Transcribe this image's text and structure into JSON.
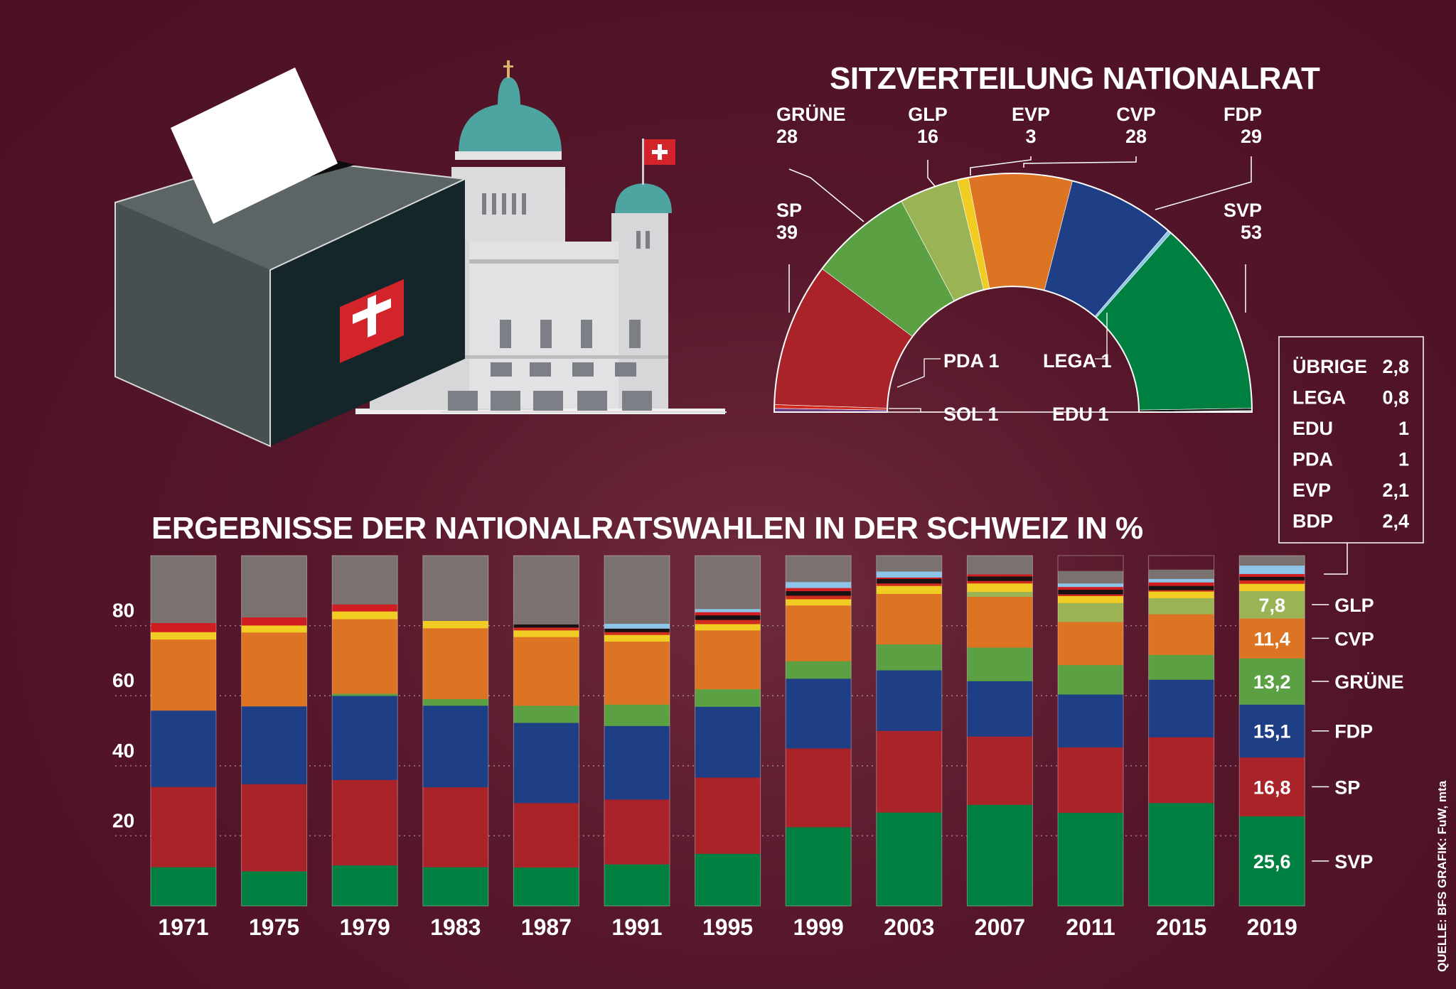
{
  "seat_title": "SITZVERTEILUNG NATIONALRAT",
  "results_title": "ERGEBNISSE DER NATIONALRATSWAHLEN IN DER SCHWEIZ IN %",
  "source": "QUELLE: BFS   GRAFIK: FuW, mta",
  "colors": {
    "SVP": "#008040",
    "SP": "#aa2328",
    "FDP": "#1e3f85",
    "GRUENE": "#5ca044",
    "CVP": "#dc7424",
    "GLP": "#9ab455",
    "EVP": "#f1cc23",
    "BDP": "#8cc5e8",
    "EDU": "#181212",
    "LEGA": "#cf1d22",
    "PDA": "#d12a1e",
    "SOL": "#6b3b86",
    "OTHER": "#7b726f",
    "OTHER_LIGHT": "#cdc8c6"
  },
  "seats": {
    "parties": [
      {
        "key": "SOL",
        "name": "SOL",
        "seats": 1,
        "color": "#6b3b86"
      },
      {
        "key": "PDA",
        "name": "PDA",
        "seats": 1,
        "color": "#d12a1e"
      },
      {
        "key": "SP",
        "name": "SP",
        "seats": 39,
        "color": "#aa2328"
      },
      {
        "key": "GRUENE",
        "name": "GRÜNE",
        "seats": 28,
        "color": "#5ca044"
      },
      {
        "key": "GLP",
        "name": "GLP",
        "seats": 16,
        "color": "#9ab455"
      },
      {
        "key": "EVP",
        "name": "EVP",
        "seats": 3,
        "color": "#f1cc23"
      },
      {
        "key": "CVP",
        "name": "CVP",
        "seats": 28,
        "color": "#dc7424"
      },
      {
        "key": "FDP",
        "name": "FDP",
        "seats": 29,
        "color": "#1e3f85"
      },
      {
        "key": "LEGA",
        "name": "LEGA",
        "seats": 1,
        "color": "#8cc5e8"
      },
      {
        "key": "SVP",
        "name": "SVP",
        "seats": 53,
        "color": "#008040"
      },
      {
        "key": "EDU",
        "name": "EDU",
        "seats": 1,
        "color": "#181212"
      }
    ],
    "labels": [
      {
        "key": "GRUENE",
        "name": "GRÜNE",
        "value": "28"
      },
      {
        "key": "GLP",
        "name": "GLP",
        "value": "16"
      },
      {
        "key": "EVP",
        "name": "EVP",
        "value": "3"
      },
      {
        "key": "CVP",
        "name": "CVP",
        "value": "28"
      },
      {
        "key": "FDP",
        "name": "FDP",
        "value": "29"
      },
      {
        "key": "SP",
        "name": "SP",
        "value": "39"
      },
      {
        "key": "SVP",
        "name": "SVP",
        "value": "53"
      },
      {
        "key": "PDA",
        "text": "PDA 1"
      },
      {
        "key": "LEGA",
        "text": "LEGA 1"
      },
      {
        "key": "SOL",
        "text": "SOL 1"
      },
      {
        "key": "EDU",
        "text": "EDU 1"
      }
    ]
  },
  "other_box": [
    {
      "name": "ÜBRIGE",
      "value": "2,8"
    },
    {
      "name": "LEGA",
      "value": "0,8"
    },
    {
      "name": "EDU",
      "value": "1"
    },
    {
      "name": "PDA",
      "value": "1"
    },
    {
      "name": "EVP",
      "value": "2,1"
    },
    {
      "name": "BDP",
      "value": "2,4"
    }
  ],
  "chart_data": {
    "type": "bar",
    "stacked": true,
    "title": "ERGEBNISSE DER NATIONALRATSWAHLEN IN DER SCHWEIZ IN %",
    "yticks": [
      20,
      40,
      60,
      80
    ],
    "ylim": [
      0,
      100
    ],
    "categories": [
      "1971",
      "1975",
      "1979",
      "1983",
      "1987",
      "1991",
      "1995",
      "1999",
      "2003",
      "2007",
      "2011",
      "2015",
      "2019"
    ],
    "stack_order": [
      "SVP",
      "SP",
      "FDP",
      "GRUENE",
      "CVP",
      "GLP",
      "EVP",
      "PDA",
      "EDU",
      "LEGA",
      "BDP",
      "OTHER"
    ],
    "series": [
      {
        "key": "SVP",
        "values": [
          11.1,
          9.9,
          11.6,
          11.1,
          11.0,
          11.9,
          14.9,
          22.5,
          26.7,
          28.9,
          26.6,
          29.4,
          25.6
        ]
      },
      {
        "key": "SP",
        "values": [
          22.9,
          24.9,
          24.4,
          22.8,
          18.4,
          18.5,
          21.8,
          22.5,
          23.3,
          19.5,
          18.7,
          18.8,
          16.8
        ]
      },
      {
        "key": "FDP",
        "values": [
          21.8,
          22.2,
          24.0,
          23.3,
          22.9,
          21.0,
          20.2,
          19.9,
          17.3,
          15.8,
          15.1,
          16.4,
          15.1
        ]
      },
      {
        "key": "GRUENE",
        "values": [
          0,
          0,
          0.6,
          1.9,
          4.9,
          6.1,
          5.0,
          5.0,
          7.4,
          9.6,
          8.4,
          7.1,
          13.2
        ]
      },
      {
        "key": "CVP",
        "values": [
          20.3,
          21.1,
          21.3,
          20.2,
          19.6,
          18.0,
          16.8,
          15.9,
          14.4,
          14.5,
          12.3,
          11.6,
          11.4
        ]
      },
      {
        "key": "GLP",
        "values": [
          0,
          0,
          0,
          0,
          0,
          0,
          0,
          0,
          0,
          1.4,
          5.4,
          4.6,
          7.8
        ]
      },
      {
        "key": "EVP",
        "values": [
          2.1,
          2.0,
          2.2,
          2.1,
          1.9,
          1.9,
          1.8,
          1.8,
          2.3,
          2.4,
          2.0,
          1.9,
          2.1
        ]
      },
      {
        "key": "PDA",
        "values": [
          0,
          0,
          0,
          0,
          0.8,
          0.8,
          1.2,
          1.0,
          0.7,
          0.7,
          0.5,
          0.4,
          1.0
        ]
      },
      {
        "key": "EDU",
        "values": [
          0,
          0,
          0,
          0,
          0.9,
          1.0,
          1.3,
          1.3,
          1.3,
          1.3,
          1.3,
          1.2,
          1.0
        ]
      },
      {
        "key": "LEGA",
        "values": [
          2.6,
          2.3,
          2.0,
          0,
          0,
          0,
          0.9,
          0.9,
          0.4,
          0.6,
          0.8,
          1.0,
          0.8
        ]
      },
      {
        "key": "BDP",
        "values": [
          0,
          0,
          0,
          0,
          0,
          1.4,
          0.9,
          1.7,
          1.7,
          0,
          1.0,
          1.0,
          2.4
        ]
      },
      {
        "key": "OTHER",
        "values": [
          19.2,
          17.6,
          13.9,
          18.6,
          19.6,
          19.4,
          15.2,
          7.5,
          4.5,
          5.3,
          3.5,
          2.6,
          2.8
        ]
      }
    ],
    "labels_2019": [
      {
        "key": "SVP",
        "value": "25,6",
        "name": "SVP"
      },
      {
        "key": "SP",
        "value": "16,8",
        "name": "SP"
      },
      {
        "key": "FDP",
        "value": "15,1",
        "name": "FDP"
      },
      {
        "key": "GRUENE",
        "value": "13,2",
        "name": "GRÜNE"
      },
      {
        "key": "CVP",
        "value": "11,4",
        "name": "CVP"
      },
      {
        "key": "GLP",
        "value": "7,8",
        "name": "GLP"
      }
    ]
  }
}
